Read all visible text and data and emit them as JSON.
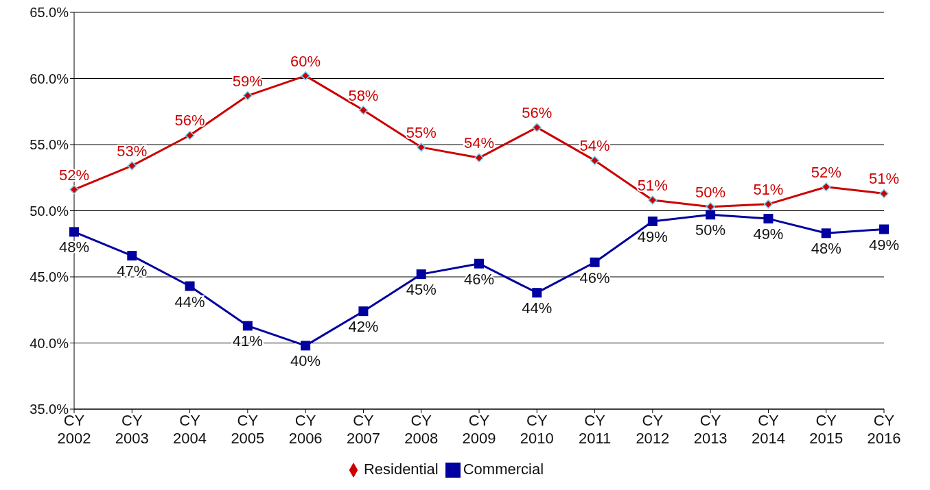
{
  "chart_data": {
    "type": "line",
    "categories": [
      "CY 2002",
      "CY 2003",
      "CY 2004",
      "CY 2005",
      "CY 2006",
      "CY 2007",
      "CY 2008",
      "CY 2009",
      "CY 2010",
      "CY 2011",
      "CY 2012",
      "CY 2013",
      "CY 2014",
      "CY 2015",
      "CY 2016"
    ],
    "series": [
      {
        "name": "Residential",
        "color": "#cc0000",
        "marker": "diamond",
        "values": [
          51.6,
          53.4,
          55.7,
          58.7,
          60.2,
          57.6,
          54.8,
          54.0,
          56.3,
          53.8,
          50.8,
          50.3,
          50.5,
          51.8,
          51.3
        ],
        "value_labels": [
          "52%",
          "53%",
          "56%",
          "59%",
          "60%",
          "58%",
          "55%",
          "54%",
          "56%",
          "54%",
          "51%",
          "50%",
          "51%",
          "52%",
          "51%"
        ]
      },
      {
        "name": "Commercial",
        "color": "#0000a0",
        "marker": "square",
        "values": [
          48.4,
          46.6,
          44.3,
          41.3,
          39.8,
          42.4,
          45.2,
          46.0,
          43.8,
          46.1,
          49.2,
          49.7,
          49.4,
          48.3,
          48.6
        ],
        "value_labels": [
          "48%",
          "47%",
          "44%",
          "41%",
          "40%",
          "42%",
          "45%",
          "46%",
          "44%",
          "46%",
          "49%",
          "50%",
          "49%",
          "48%",
          "49%"
        ]
      }
    ],
    "ylim": [
      35,
      65
    ],
    "yticks": [
      {
        "value": 35,
        "label": "35.0%"
      },
      {
        "value": 40,
        "label": "40.0%"
      },
      {
        "value": 45,
        "label": "45.0%"
      },
      {
        "value": 50,
        "label": "50.0%"
      },
      {
        "value": 55,
        "label": "55.0%"
      },
      {
        "value": 60,
        "label": "60.0%"
      },
      {
        "value": 65,
        "label": "65.0%"
      }
    ],
    "grid": "y",
    "legend": "bottom",
    "line_style": "solid"
  }
}
